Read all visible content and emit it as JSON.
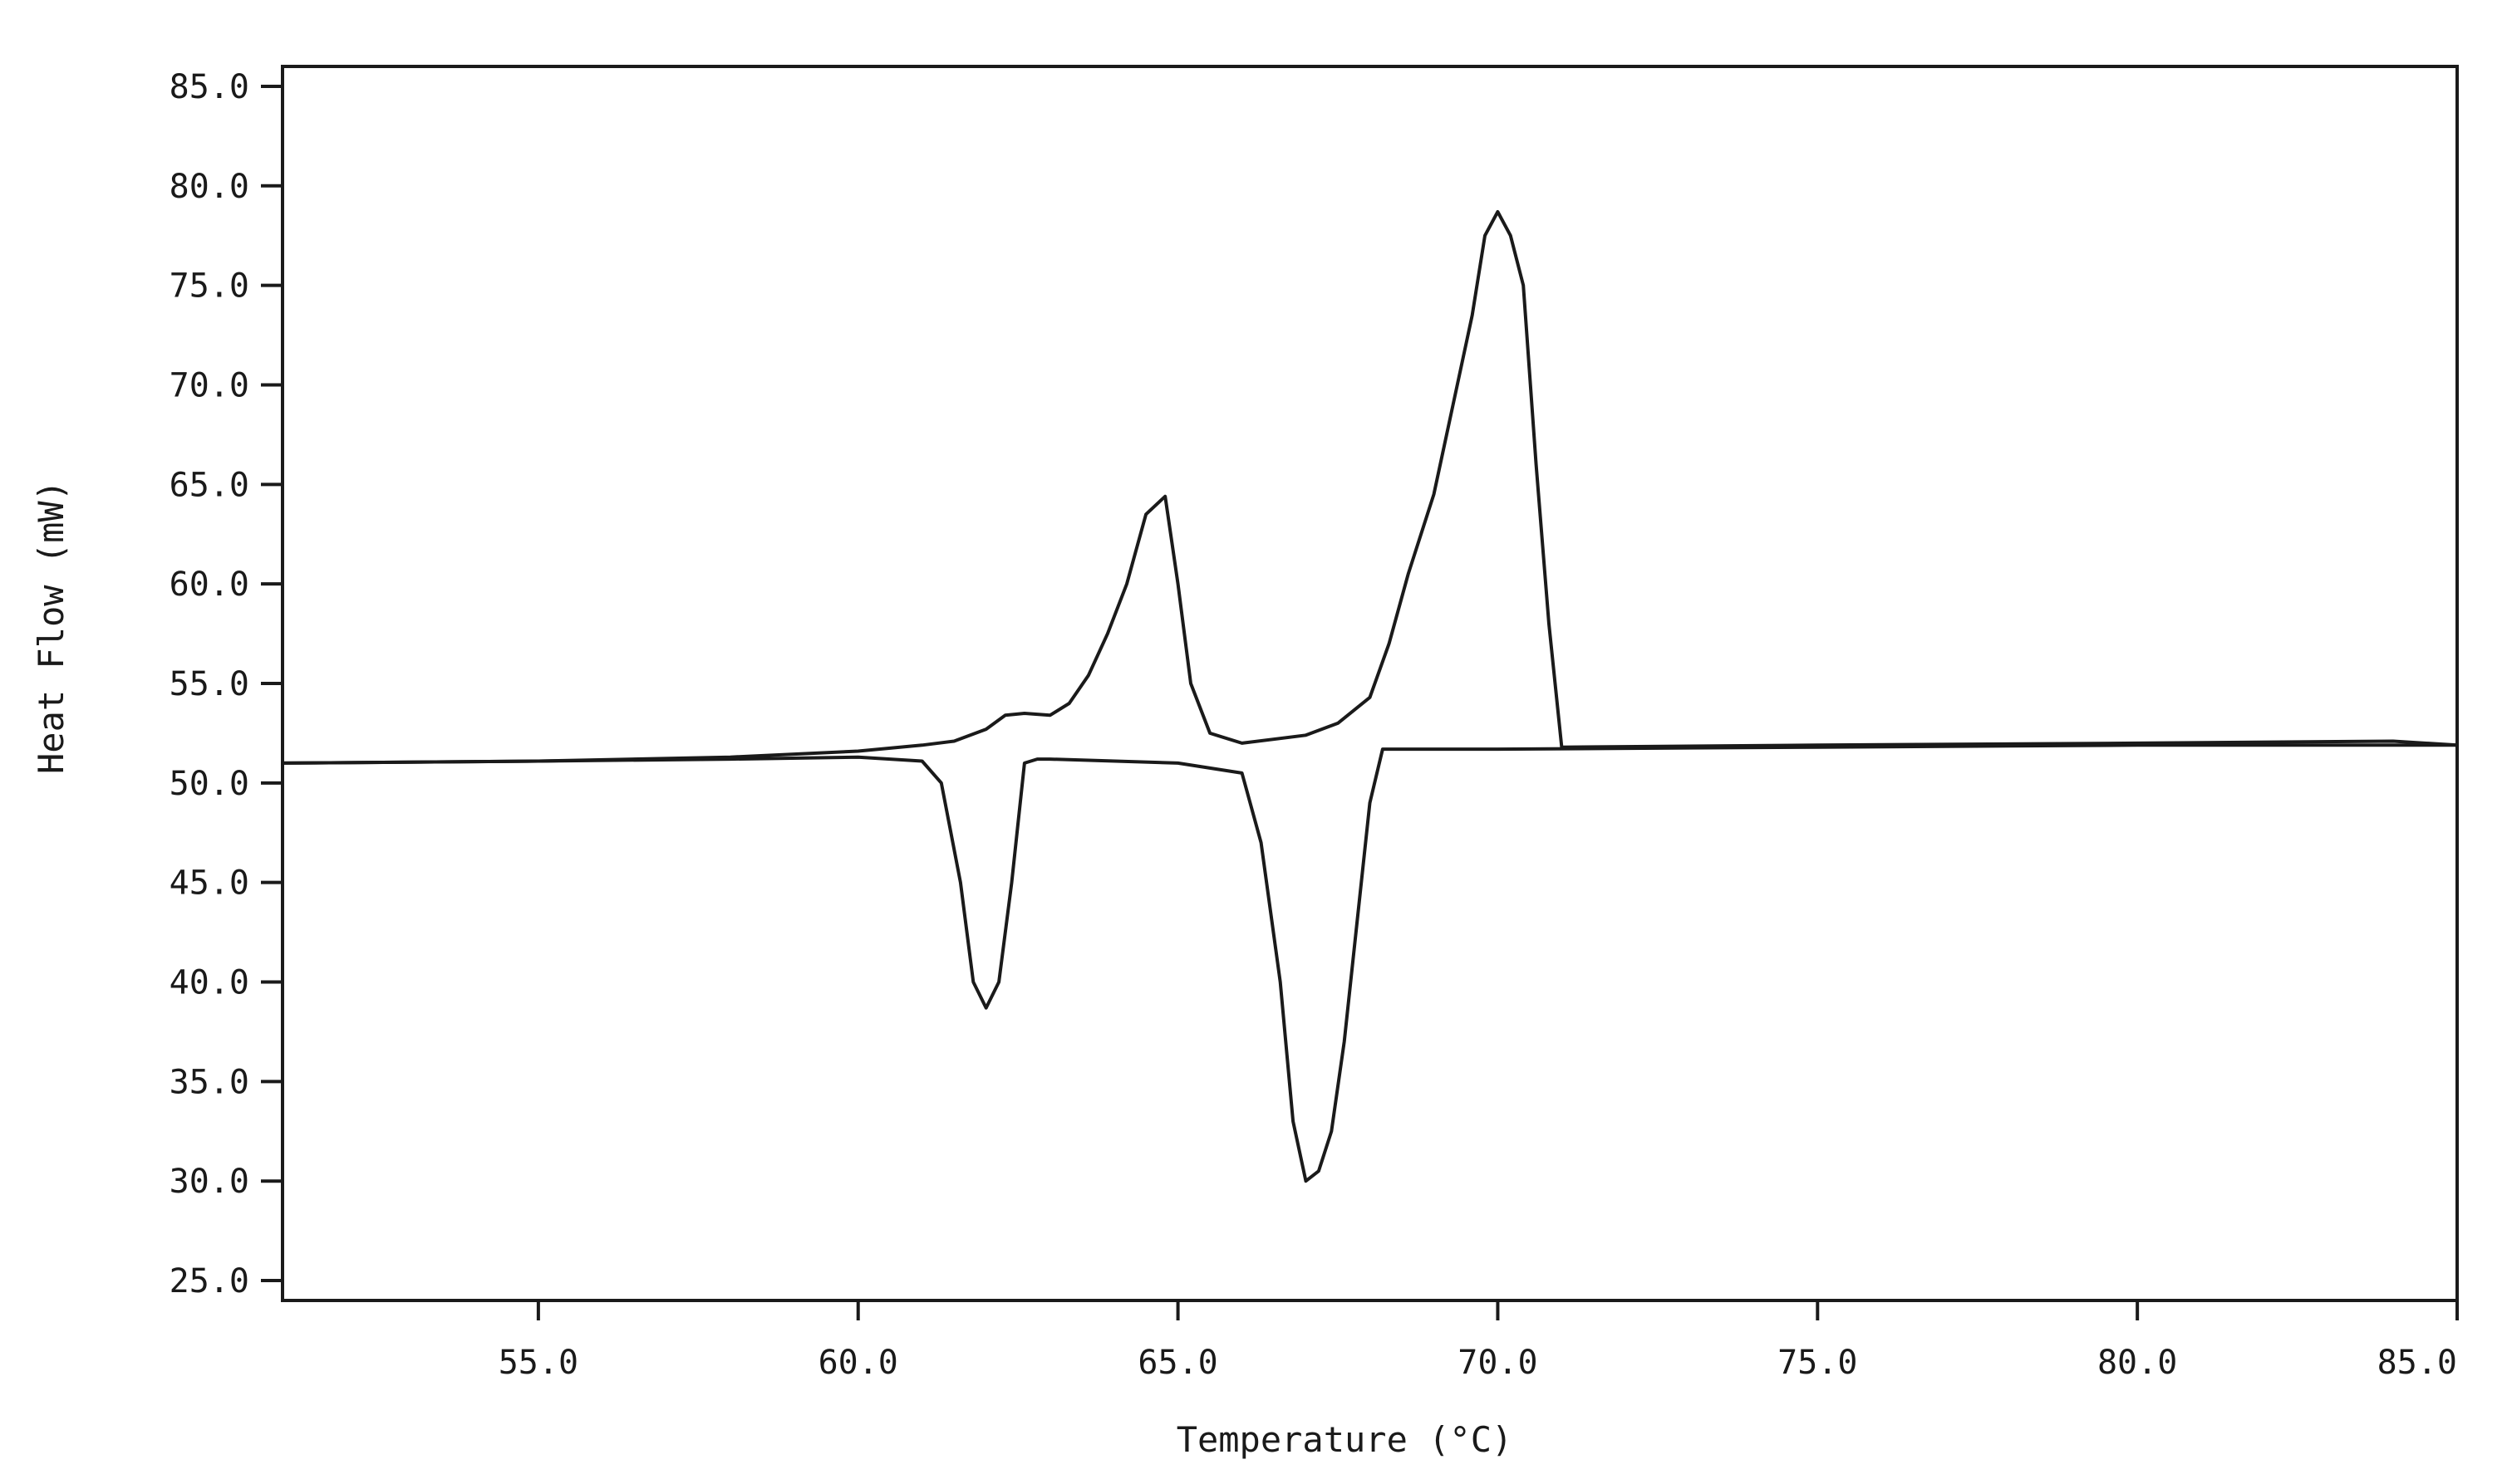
{
  "chart_data": {
    "type": "line",
    "xlabel": "Temperature (°C)",
    "ylabel": "Heat Flow (mW)",
    "xlim": [
      51.0,
      85.0
    ],
    "ylim": [
      24.0,
      86.0
    ],
    "grid": false,
    "x_ticks": [
      55.0,
      60.0,
      65.0,
      70.0,
      75.0,
      80.0,
      85.0
    ],
    "x_tick_labels": [
      "55.0",
      "60.0",
      "65.0",
      "70.0",
      "75.0",
      "80.0",
      "85.0"
    ],
    "y_ticks": [
      25.0,
      30.0,
      35.0,
      40.0,
      45.0,
      50.0,
      55.0,
      60.0,
      65.0,
      70.0,
      75.0,
      80.0,
      85.0
    ],
    "y_tick_labels": [
      "25.0",
      "30.0",
      "35.0",
      "40.0",
      "45.0",
      "50.0",
      "55.0",
      "60.0",
      "65.0",
      "70.0",
      "75.0",
      "80.0",
      "85.0"
    ],
    "series": [
      {
        "line_color": "#1a1a1a",
        "x": [
          51.0,
          55.0,
          58.0,
          60.0,
          61.0,
          61.5,
          62.0,
          62.3,
          62.6,
          63.0,
          63.3,
          63.6,
          63.9,
          64.2,
          64.5,
          64.8,
          65.0,
          65.2,
          65.5,
          66.0,
          67.0,
          67.5,
          68.0,
          68.3,
          68.6,
          69.0,
          69.3,
          69.6,
          69.8,
          70.0,
          70.2,
          70.4,
          70.6,
          70.8,
          71.0,
          75.0,
          80.0,
          84.0,
          85.0
        ],
        "y": [
          51.0,
          51.1,
          51.3,
          51.6,
          51.9,
          52.1,
          52.7,
          53.4,
          53.5,
          53.4,
          54.0,
          55.4,
          57.5,
          60.0,
          63.5,
          64.4,
          60.0,
          55.0,
          52.5,
          52.0,
          52.4,
          53.0,
          54.3,
          57.0,
          60.5,
          64.5,
          69.0,
          73.5,
          77.5,
          78.7,
          77.5,
          75.0,
          66.0,
          58.0,
          51.8,
          51.9,
          52.0,
          52.1,
          51.9
        ]
      },
      {
        "line_color": "#1a1a1a",
        "x": [
          51.0,
          55.0,
          58.0,
          60.0,
          61.0,
          61.3,
          61.6,
          61.8,
          62.0,
          62.2,
          62.4,
          62.6,
          62.8,
          63.0,
          65.0,
          66.0,
          66.3,
          66.6,
          66.8,
          67.0,
          67.2,
          67.4,
          67.6,
          67.8,
          68.0,
          68.2,
          68.5,
          70.0,
          75.0,
          80.0,
          85.0
        ],
        "y": [
          51.0,
          51.1,
          51.2,
          51.3,
          51.1,
          50.0,
          45.0,
          40.0,
          38.7,
          40.0,
          45.0,
          51.0,
          51.2,
          51.2,
          51.0,
          50.5,
          47.0,
          40.0,
          33.0,
          30.0,
          30.5,
          32.5,
          37.0,
          43.0,
          49.0,
          51.7,
          51.7,
          51.7,
          51.8,
          51.9,
          51.9
        ]
      }
    ]
  }
}
